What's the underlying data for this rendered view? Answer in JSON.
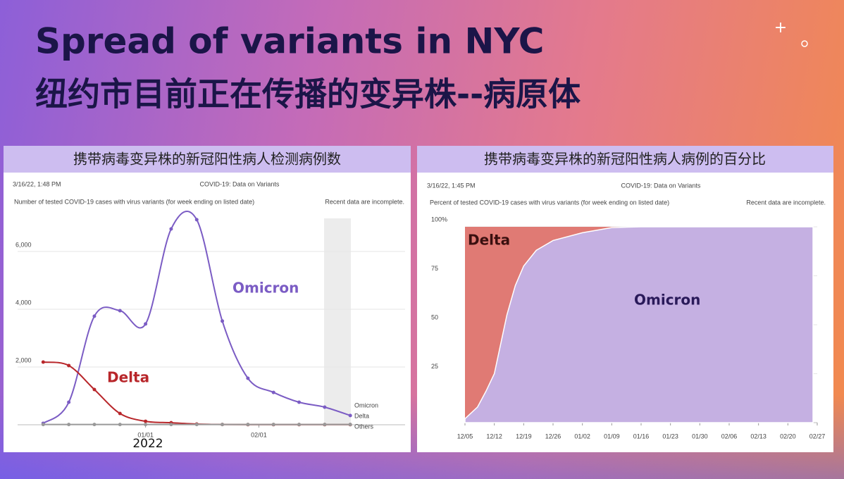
{
  "slide": {
    "title": "Spread of variants in NYC",
    "subtitle": "纽约市目前正在传播的变异株--病原体"
  },
  "chart_data": [
    {
      "type": "line",
      "title": "携带病毒变异株的新冠阳性病人检测病例数",
      "timestamp": "3/16/22, 1:48 PM",
      "subtitle": "COVID-19: Data on Variants",
      "description": "Number of tested COVID-19 cases with virus variants (for week ending on listed date)",
      "note": "Recent data are incomplete.",
      "xlabel": "2022",
      "x": [
        "12/04",
        "12/11",
        "12/18",
        "12/25",
        "01/01",
        "01/08",
        "01/15",
        "01/22",
        "01/29",
        "02/05",
        "02/12",
        "02/19",
        "02/26"
      ],
      "xlim": [
        "11/27",
        "03/13"
      ],
      "xticks": [
        "01/01",
        "02/01"
      ],
      "ylim": [
        0,
        7500
      ],
      "yticks": [
        {
          "value": 2000,
          "label": "2,000"
        },
        {
          "value": 4000,
          "label": "4,000"
        },
        {
          "value": 6000,
          "label": "6,000"
        }
      ],
      "grid": true,
      "series": [
        {
          "name": "Omicron",
          "color": "#7b5cc4",
          "values": [
            50,
            780,
            3760,
            3950,
            3490,
            6780,
            7100,
            3590,
            1610,
            1120,
            780,
            610,
            320
          ]
        },
        {
          "name": "Delta",
          "color": "#b8262a",
          "values": [
            2170,
            2050,
            1220,
            390,
            120,
            70,
            25,
            10,
            5,
            5,
            5,
            5,
            5
          ]
        },
        {
          "name": "Others",
          "color": "#999999",
          "values": [
            10,
            10,
            10,
            10,
            10,
            10,
            10,
            10,
            10,
            10,
            10,
            10,
            10
          ]
        }
      ],
      "annotations": [
        {
          "text": "Omicron",
          "color": "#7b5cc4"
        },
        {
          "text": "Delta",
          "color": "#b8262a"
        }
      ]
    },
    {
      "type": "area",
      "stacked": true,
      "title": "携带病毒变异株的新冠阳性病人病例的百分比",
      "timestamp": "3/16/22, 1:45 PM",
      "subtitle": "COVID-19: Data on Variants",
      "description": "Percent of tested COVID-19 cases with virus variants (for week ending on listed date)",
      "note": "Recent data are incomplete.",
      "x": [
        "12/05",
        "12/08",
        "12/10",
        "12/12",
        "12/15",
        "12/17",
        "12/19",
        "12/22",
        "12/26",
        "01/02",
        "01/09",
        "01/16",
        "01/23",
        "01/30",
        "02/06",
        "02/13",
        "02/20",
        "02/26"
      ],
      "xlim": [
        "12/05",
        "02/27"
      ],
      "xticks": [
        "12/05",
        "12/12",
        "12/19",
        "12/26",
        "01/02",
        "01/09",
        "01/16",
        "01/23",
        "01/30",
        "02/06",
        "02/13",
        "02/20",
        "02/27"
      ],
      "ylim": [
        0,
        100
      ],
      "yticks": [
        25,
        50,
        75,
        {
          "value": 100,
          "label": "100%"
        }
      ],
      "grid": true,
      "series": [
        {
          "name": "Omicron",
          "color": "#c5b0e2",
          "values": [
            2,
            8,
            16,
            25,
            55,
            70,
            80,
            88,
            93,
            97,
            99.6,
            100,
            100,
            100,
            100,
            100,
            100,
            100
          ]
        },
        {
          "name": "Delta",
          "color": "#e07a74",
          "values": [
            98,
            92,
            84,
            75,
            45,
            30,
            20,
            12,
            7,
            3,
            0.4,
            0,
            0,
            0,
            0,
            0,
            0,
            0
          ]
        }
      ]
    }
  ]
}
